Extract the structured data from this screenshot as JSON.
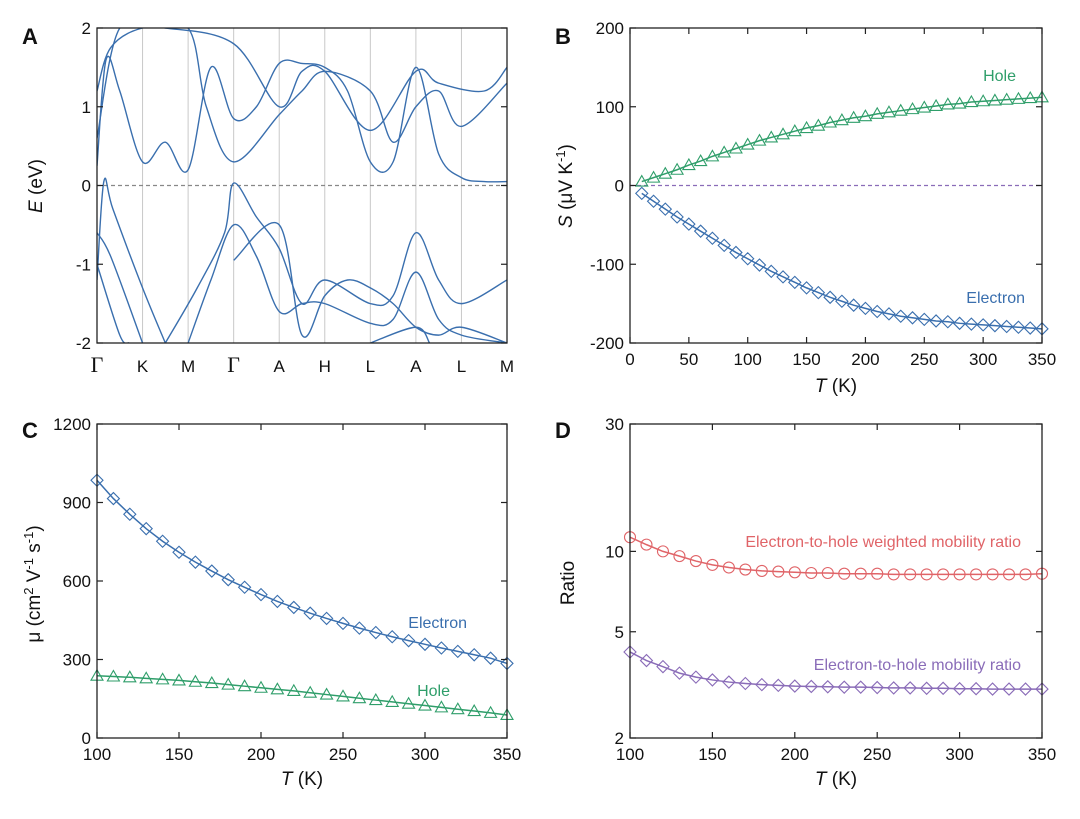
{
  "colors": {
    "blue": "#3a6fae",
    "green": "#2f9e6a",
    "red": "#e06468",
    "purple": "#8a6cb8",
    "dash": "#888888"
  },
  "chart_data": [
    {
      "panel": "A",
      "type": "line",
      "title": "",
      "ylabel_var": "E",
      "ylabel_unit": " (eV)",
      "ylim": [
        -2,
        2
      ],
      "yticks": [
        "-2",
        "-1",
        "0",
        "1",
        "2"
      ],
      "ytick_values": [
        -2,
        -1,
        0,
        1,
        2
      ],
      "kpoints": [
        "Γ",
        "K",
        "M",
        "Γ",
        "A",
        "H",
        "L",
        "A",
        "L",
        "M"
      ],
      "kpoint_positions": [
        0,
        1,
        2,
        3,
        4,
        5,
        6,
        7,
        8,
        9
      ],
      "fermi_level": 0,
      "bands": [
        [
          [
            0,
            0.25
          ],
          [
            0.2,
            1.6
          ],
          [
            0.5,
            1.2
          ],
          [
            1,
            0.3
          ],
          [
            1.5,
            0.55
          ],
          [
            2,
            0.2
          ],
          [
            2.5,
            1.5
          ],
          [
            3,
            0.85
          ],
          [
            3.5,
            1.0
          ],
          [
            4,
            1.55
          ],
          [
            4.5,
            1.55
          ],
          [
            5,
            1.5
          ],
          [
            5.5,
            1.2
          ],
          [
            6,
            0.3
          ],
          [
            6.5,
            0.3
          ],
          [
            7,
            1.5
          ],
          [
            7.5,
            0.4
          ],
          [
            8,
            0.1
          ],
          [
            8.5,
            0.05
          ],
          [
            9,
            0.05
          ]
        ],
        [
          [
            0,
            1.2
          ],
          [
            0.3,
            1.75
          ],
          [
            1,
            2.0
          ],
          [
            2,
            2.0
          ],
          [
            2.4,
            1.0
          ],
          [
            3,
            0.3
          ],
          [
            4,
            0.9
          ],
          [
            4.5,
            1.2
          ],
          [
            5,
            1.45
          ],
          [
            6,
            1.2
          ],
          [
            6.5,
            0.55
          ],
          [
            7,
            1.0
          ],
          [
            7.5,
            1.2
          ],
          [
            8,
            0.75
          ],
          [
            9,
            1.3
          ]
        ],
        [
          [
            0,
            0.6
          ],
          [
            0.5,
            2.0
          ],
          [
            1.5,
            2.0
          ],
          [
            3,
            1.8
          ],
          [
            4,
            1.0
          ],
          [
            4.5,
            1.45
          ],
          [
            5,
            1.45
          ],
          [
            6,
            0.7
          ],
          [
            7,
            1.45
          ],
          [
            7.5,
            1.3
          ],
          [
            8.5,
            1.2
          ],
          [
            9,
            1.5
          ]
        ],
        [
          [
            0,
            -1.2
          ],
          [
            0.15,
            0.05
          ],
          [
            0.35,
            -0.3
          ],
          [
            1,
            -1.3
          ],
          [
            1.5,
            -2.0
          ]
        ],
        [
          [
            0,
            -0.6
          ],
          [
            0.3,
            -0.9
          ],
          [
            1,
            -2.0
          ]
        ],
        [
          [
            0,
            -1.0
          ],
          [
            0.5,
            -1.9
          ],
          [
            0.7,
            -2.0
          ]
        ],
        [
          [
            1.5,
            -2.0
          ],
          [
            2.2,
            -1.3
          ],
          [
            2.8,
            -0.6
          ],
          [
            3,
            0.03
          ],
          [
            3.5,
            -0.4
          ],
          [
            4,
            -0.8
          ],
          [
            4.5,
            -1.5
          ],
          [
            5,
            -1.2
          ],
          [
            6,
            -1.5
          ],
          [
            6.5,
            -1.4
          ],
          [
            7,
            -0.6
          ],
          [
            7.5,
            -1.2
          ],
          [
            8,
            -1.5
          ],
          [
            9,
            -1.2
          ]
        ],
        [
          [
            2,
            -2.0
          ],
          [
            2.5,
            -1.2
          ],
          [
            3,
            -0.5
          ],
          [
            3.5,
            -0.9
          ],
          [
            4,
            -1.6
          ],
          [
            4.5,
            -1.5
          ],
          [
            5,
            -1.5
          ],
          [
            6,
            -1.75
          ],
          [
            6.5,
            -1.7
          ],
          [
            7,
            -1.1
          ],
          [
            7.5,
            -1.7
          ],
          [
            8,
            -1.9
          ],
          [
            9,
            -2.0
          ]
        ],
        [
          [
            3,
            -0.95
          ],
          [
            4,
            -0.5
          ],
          [
            4.5,
            -1.9
          ],
          [
            5,
            -1.4
          ],
          [
            5.5,
            -1.2
          ],
          [
            6,
            -1.3
          ],
          [
            6.5,
            -1.5
          ],
          [
            7,
            -1.8
          ],
          [
            7.5,
            -1.9
          ],
          [
            8,
            -1.8
          ],
          [
            9,
            -2.0
          ]
        ],
        [
          [
            6,
            -2.0
          ],
          [
            7,
            -1.8
          ],
          [
            7.3,
            -2.0
          ]
        ]
      ]
    },
    {
      "panel": "B",
      "type": "scatter",
      "title": "",
      "xlabel_var": "T",
      "xlabel_unit": " (K)",
      "ylabel_var": "S",
      "ylabel_unit_pre": " (μV K",
      "ylabel_unit_sup": "-1",
      "ylabel_unit_post": ")",
      "xlim": [
        0,
        350
      ],
      "ylim": [
        -200,
        200
      ],
      "xticks": [
        "0",
        "50",
        "100",
        "150",
        "200",
        "250",
        "300",
        "350"
      ],
      "xtick_values": [
        0,
        50,
        100,
        150,
        200,
        250,
        300,
        350
      ],
      "yticks": [
        "-200",
        "-100",
        "0",
        "100",
        "200"
      ],
      "ytick_values": [
        -200,
        -100,
        0,
        100,
        200
      ],
      "zero_line": 0,
      "series": [
        {
          "name": "Hole",
          "color": "green",
          "marker": "triangle",
          "x": [
            10,
            20,
            30,
            40,
            50,
            60,
            70,
            80,
            90,
            100,
            110,
            120,
            130,
            140,
            150,
            160,
            170,
            180,
            190,
            200,
            210,
            220,
            230,
            240,
            250,
            260,
            270,
            280,
            290,
            300,
            310,
            320,
            330,
            340,
            350
          ],
          "y": [
            5,
            10,
            15,
            20,
            26,
            31,
            37,
            42,
            47,
            52,
            57,
            61,
            65,
            69,
            73,
            76,
            80,
            83,
            86,
            88,
            91,
            93,
            95,
            97,
            99,
            101,
            103,
            104,
            106,
            107,
            108,
            109,
            110,
            111,
            112
          ]
        },
        {
          "name": "Electron",
          "color": "blue",
          "marker": "diamond",
          "x": [
            10,
            20,
            30,
            40,
            50,
            60,
            70,
            80,
            90,
            100,
            110,
            120,
            130,
            140,
            150,
            160,
            170,
            180,
            190,
            200,
            210,
            220,
            230,
            240,
            250,
            260,
            270,
            280,
            290,
            300,
            310,
            320,
            330,
            340,
            350
          ],
          "y": [
            -10,
            -20,
            -30,
            -40,
            -49,
            -58,
            -67,
            -76,
            -85,
            -93,
            -101,
            -109,
            -116,
            -123,
            -130,
            -136,
            -142,
            -147,
            -152,
            -156,
            -160,
            -163,
            -166,
            -168,
            -170,
            -172,
            -173,
            -175,
            -176,
            -177,
            -178,
            -179,
            -180,
            -181,
            -182
          ]
        }
      ]
    },
    {
      "panel": "C",
      "type": "scatter",
      "title": "",
      "xlabel_var": "T",
      "xlabel_unit": " (K)",
      "ylabel_pre": "μ (cm",
      "ylabel_sup1": "2",
      "ylabel_mid1": " V",
      "ylabel_sup2": "-1",
      "ylabel_mid2": " s",
      "ylabel_sup3": "-1",
      "ylabel_post": ")",
      "xlim": [
        100,
        350
      ],
      "ylim": [
        0,
        1200
      ],
      "xticks": [
        "100",
        "150",
        "200",
        "250",
        "300",
        "350"
      ],
      "xtick_values": [
        100,
        150,
        200,
        250,
        300,
        350
      ],
      "yticks": [
        "0",
        "300",
        "600",
        "900",
        "1200"
      ],
      "ytick_values": [
        0,
        300,
        600,
        900,
        1200
      ],
      "series": [
        {
          "name": "Electron",
          "color": "blue",
          "marker": "diamond",
          "x": [
            100,
            110,
            120,
            130,
            140,
            150,
            160,
            170,
            180,
            190,
            200,
            210,
            220,
            230,
            240,
            250,
            260,
            270,
            280,
            290,
            300,
            310,
            320,
            330,
            340,
            350
          ],
          "y": [
            985,
            915,
            855,
            800,
            752,
            710,
            672,
            638,
            605,
            576,
            548,
            522,
            499,
            477,
            457,
            438,
            420,
            403,
            387,
            372,
            358,
            344,
            331,
            318,
            305,
            285
          ]
        },
        {
          "name": "Hole",
          "color": "green",
          "marker": "triangle",
          "x": [
            100,
            110,
            120,
            130,
            140,
            150,
            160,
            170,
            180,
            190,
            200,
            210,
            220,
            230,
            240,
            250,
            260,
            270,
            280,
            290,
            300,
            310,
            320,
            330,
            340,
            350
          ],
          "y": [
            238,
            235,
            232,
            228,
            224,
            220,
            215,
            210,
            204,
            198,
            192,
            186,
            180,
            173,
            166,
            159,
            152,
            145,
            138,
            131,
            124,
            117,
            110,
            103,
            96,
            88
          ]
        }
      ]
    },
    {
      "panel": "D",
      "type": "scatter",
      "title": "",
      "xlabel_var": "T",
      "xlabel_unit": " (K)",
      "ylabel": "Ratio",
      "yscale": "log",
      "xlim": [
        100,
        350
      ],
      "ylim": [
        2,
        30
      ],
      "xticks": [
        "100",
        "150",
        "200",
        "250",
        "300",
        "350"
      ],
      "xtick_values": [
        100,
        150,
        200,
        250,
        300,
        350
      ],
      "yticks": [
        "2",
        "5",
        "10",
        "30"
      ],
      "ytick_values": [
        2,
        5,
        10,
        30
      ],
      "series": [
        {
          "name": "Electron-to-hole weighted mobility ratio",
          "color": "red",
          "marker": "circle",
          "x": [
            100,
            110,
            120,
            130,
            140,
            150,
            160,
            170,
            180,
            190,
            200,
            210,
            220,
            230,
            240,
            250,
            260,
            270,
            280,
            290,
            300,
            310,
            320,
            330,
            340,
            350
          ],
          "y": [
            11.3,
            10.6,
            10.0,
            9.6,
            9.2,
            8.9,
            8.7,
            8.55,
            8.45,
            8.4,
            8.35,
            8.3,
            8.3,
            8.25,
            8.25,
            8.25,
            8.2,
            8.2,
            8.2,
            8.2,
            8.2,
            8.2,
            8.2,
            8.2,
            8.2,
            8.25
          ]
        },
        {
          "name": "Electron-to-hole mobility ratio",
          "color": "purple",
          "marker": "diamond",
          "x": [
            100,
            110,
            120,
            130,
            140,
            150,
            160,
            170,
            180,
            190,
            200,
            210,
            220,
            230,
            240,
            250,
            260,
            270,
            280,
            290,
            300,
            310,
            320,
            330,
            340,
            350
          ],
          "y": [
            4.2,
            3.9,
            3.7,
            3.5,
            3.38,
            3.3,
            3.24,
            3.2,
            3.17,
            3.15,
            3.13,
            3.12,
            3.11,
            3.1,
            3.1,
            3.09,
            3.08,
            3.08,
            3.07,
            3.07,
            3.06,
            3.06,
            3.05,
            3.05,
            3.05,
            3.05
          ]
        }
      ]
    }
  ]
}
